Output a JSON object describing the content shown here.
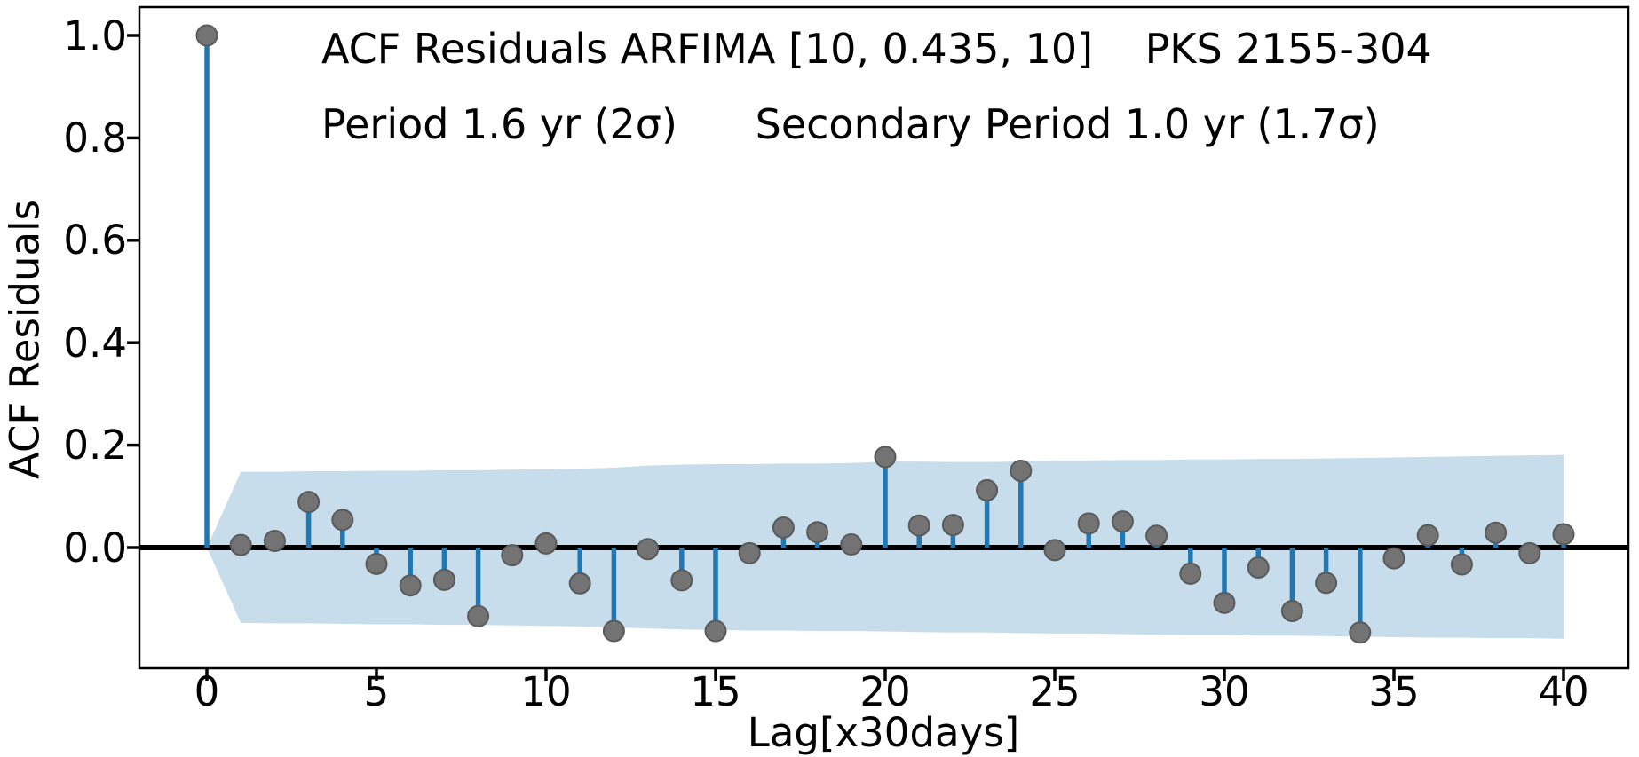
{
  "chart_data": {
    "type": "stem",
    "title_line1": "ACF Residuals ARFIMA [10, 0.435, 10]    PKS 2155-304",
    "title_line2": "Period 1.6 yr (2σ)      Secondary Period 1.0 yr (1.7σ)",
    "xlabel": "Lag[x30days]",
    "ylabel": "ACF Residuals",
    "x": [
      0,
      1,
      2,
      3,
      4,
      5,
      6,
      7,
      8,
      9,
      10,
      11,
      12,
      13,
      14,
      15,
      16,
      17,
      18,
      19,
      20,
      21,
      22,
      23,
      24,
      25,
      26,
      27,
      28,
      29,
      30,
      31,
      32,
      33,
      34,
      35,
      36,
      37,
      38,
      39,
      40
    ],
    "values": [
      1.0,
      0.005,
      0.013,
      0.089,
      0.054,
      -0.032,
      -0.074,
      -0.063,
      -0.134,
      -0.015,
      0.008,
      -0.07,
      -0.163,
      -0.003,
      -0.064,
      -0.163,
      -0.011,
      0.039,
      0.03,
      0.006,
      0.177,
      0.043,
      0.044,
      0.112,
      0.15,
      -0.005,
      0.047,
      0.051,
      0.023,
      -0.051,
      -0.108,
      -0.039,
      -0.124,
      -0.069,
      -0.166,
      -0.021,
      0.024,
      -0.033,
      0.029,
      -0.011,
      0.026
    ],
    "confidence_band": {
      "x": [
        0,
        1,
        2,
        3,
        4,
        5,
        6,
        7,
        8,
        9,
        10,
        11,
        12,
        13,
        14,
        15,
        16,
        17,
        18,
        19,
        20,
        21,
        22,
        23,
        24,
        25,
        26,
        27,
        28,
        29,
        30,
        31,
        32,
        33,
        34,
        35,
        36,
        37,
        38,
        39,
        40
      ],
      "upper": [
        0,
        0.148,
        0.148,
        0.149,
        0.149,
        0.15,
        0.15,
        0.151,
        0.151,
        0.152,
        0.153,
        0.154,
        0.156,
        0.16,
        0.162,
        0.163,
        0.163,
        0.164,
        0.164,
        0.165,
        0.168,
        0.168,
        0.167,
        0.167,
        0.168,
        0.17,
        0.17,
        0.171,
        0.171,
        0.172,
        0.172,
        0.173,
        0.173,
        0.174,
        0.175,
        0.176,
        0.177,
        0.178,
        0.179,
        0.18,
        0.181
      ],
      "lower": [
        0,
        -0.147,
        -0.148,
        -0.148,
        -0.149,
        -0.15,
        -0.15,
        -0.151,
        -0.151,
        -0.152,
        -0.153,
        -0.154,
        -0.156,
        -0.158,
        -0.16,
        -0.161,
        -0.162,
        -0.162,
        -0.163,
        -0.163,
        -0.164,
        -0.165,
        -0.166,
        -0.166,
        -0.167,
        -0.168,
        -0.168,
        -0.169,
        -0.17,
        -0.171,
        -0.171,
        -0.172,
        -0.172,
        -0.173,
        -0.174,
        -0.175,
        -0.176,
        -0.176,
        -0.177,
        -0.177,
        -0.178
      ]
    },
    "xticks": [
      0,
      5,
      10,
      15,
      20,
      25,
      30,
      35,
      40
    ],
    "xtick_labels": [
      "0",
      "5",
      "10",
      "15",
      "20",
      "25",
      "30",
      "35",
      "40"
    ],
    "yticks": [
      0.0,
      0.2,
      0.4,
      0.6,
      0.8,
      1.0
    ],
    "ytick_labels": [
      "0.0",
      "0.2",
      "0.4",
      "0.6",
      "0.8",
      "1.0"
    ],
    "xlim": [
      -2,
      42
    ],
    "ylim": [
      -0.236,
      1.055
    ],
    "grid": false,
    "legend": "none",
    "colors": {
      "stem": "#1f77b4",
      "marker_face": "#737373",
      "marker_edge": "#5a5a5a",
      "band": "#c7ddec",
      "zero_line": "#000000",
      "spine": "#000000",
      "text": "#000000"
    }
  }
}
